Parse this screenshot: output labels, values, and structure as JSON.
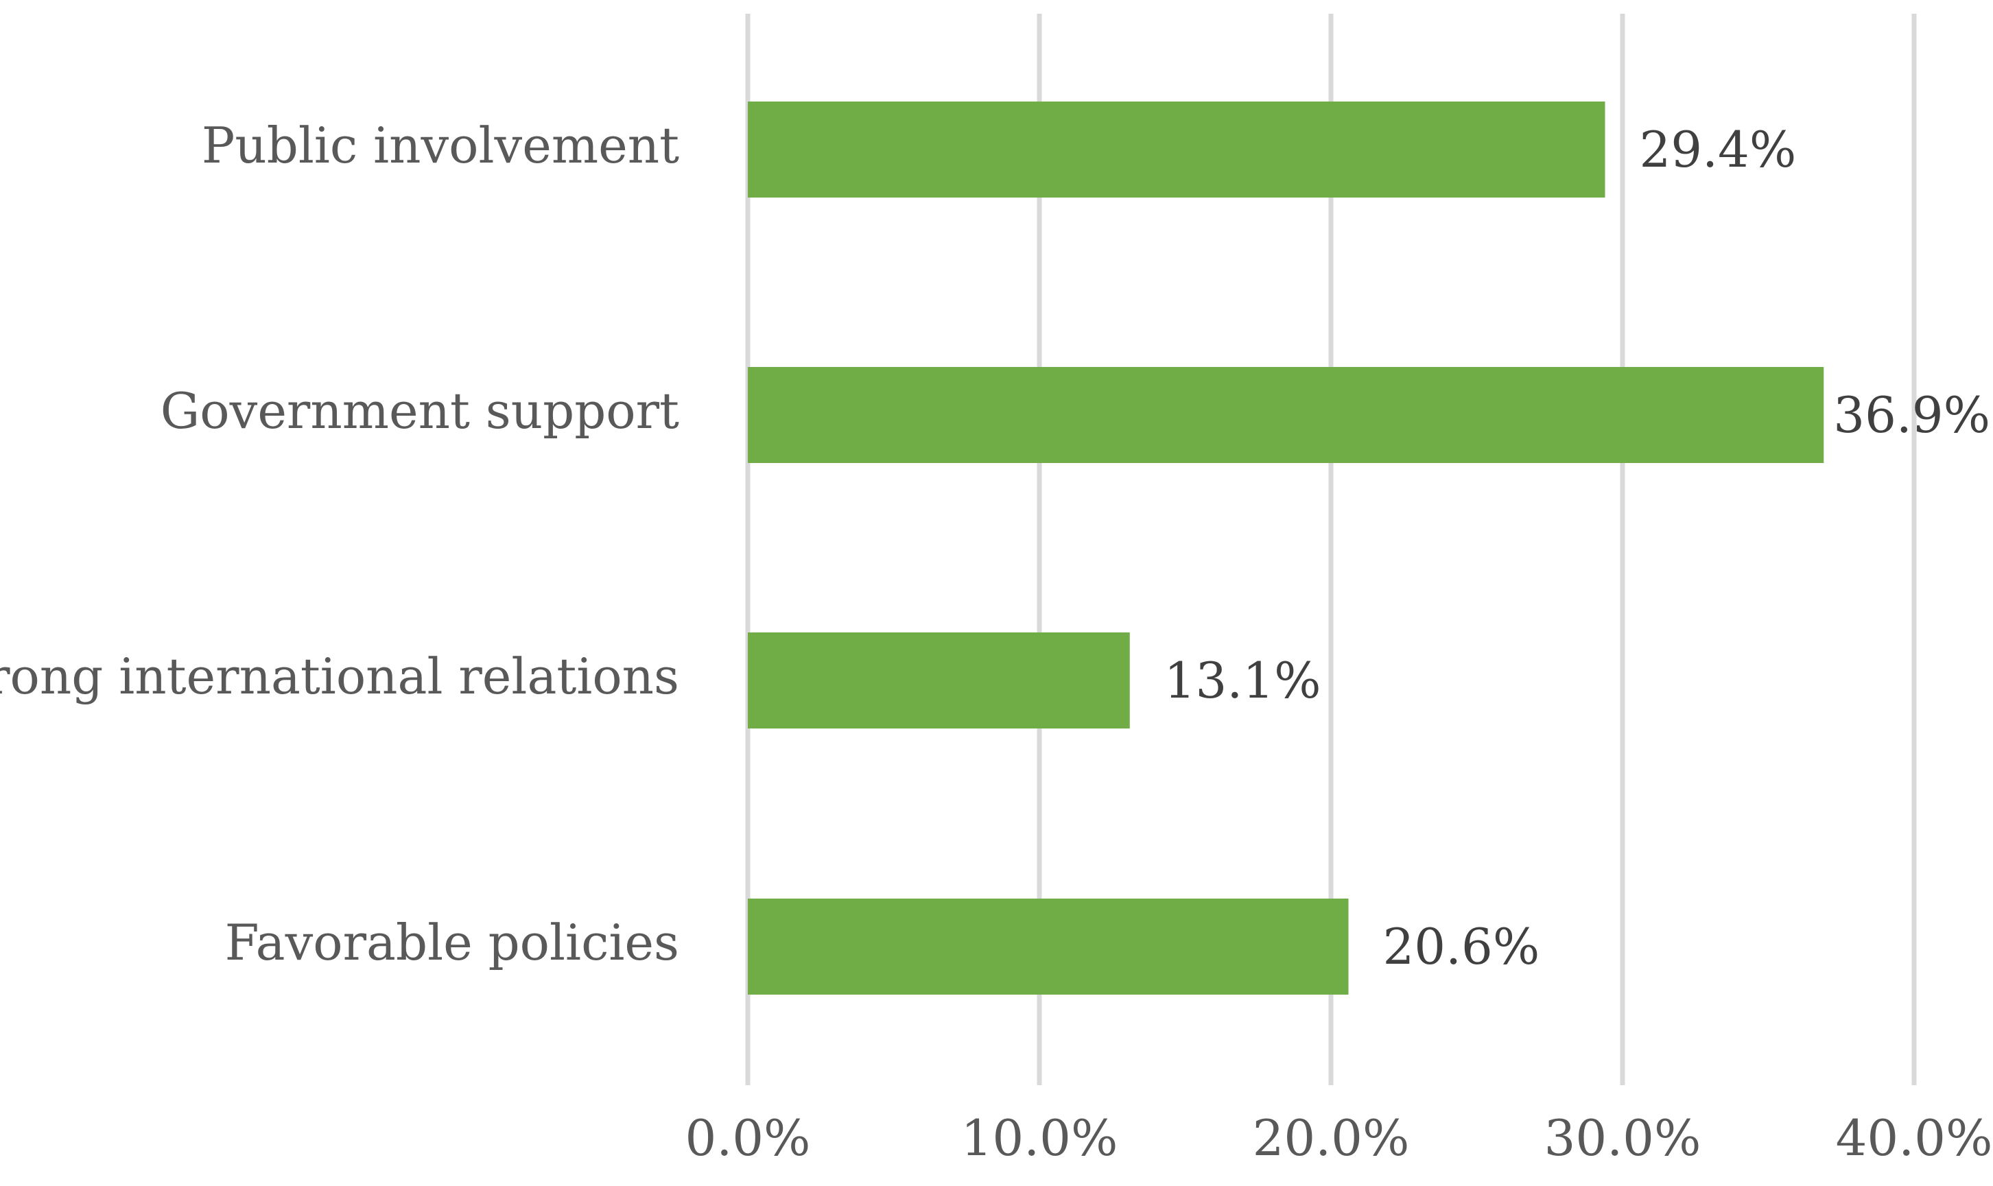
{
  "chart_data": {
    "type": "bar",
    "orientation": "horizontal",
    "title": "",
    "xlabel": "",
    "ylabel": "",
    "categories": [
      "Public involvement",
      "Government support",
      "Strong international relations",
      "Favorable policies"
    ],
    "values": [
      29.4,
      36.9,
      13.1,
      20.6
    ],
    "value_labels": [
      "29.4%",
      "36.9%",
      "13.1%",
      "20.6%"
    ],
    "xlim": [
      0,
      40
    ],
    "xticks": [
      0,
      10,
      20,
      30,
      40
    ],
    "xtick_labels": [
      "0.0%",
      "10.0%",
      "20.0%",
      "30.0%",
      "40.0%"
    ],
    "grid": true,
    "legend": "none",
    "colors": {
      "bar": "#70ad47",
      "grid": "#d9d9d9",
      "category_text": "#595959",
      "value_text": "#404040"
    }
  }
}
